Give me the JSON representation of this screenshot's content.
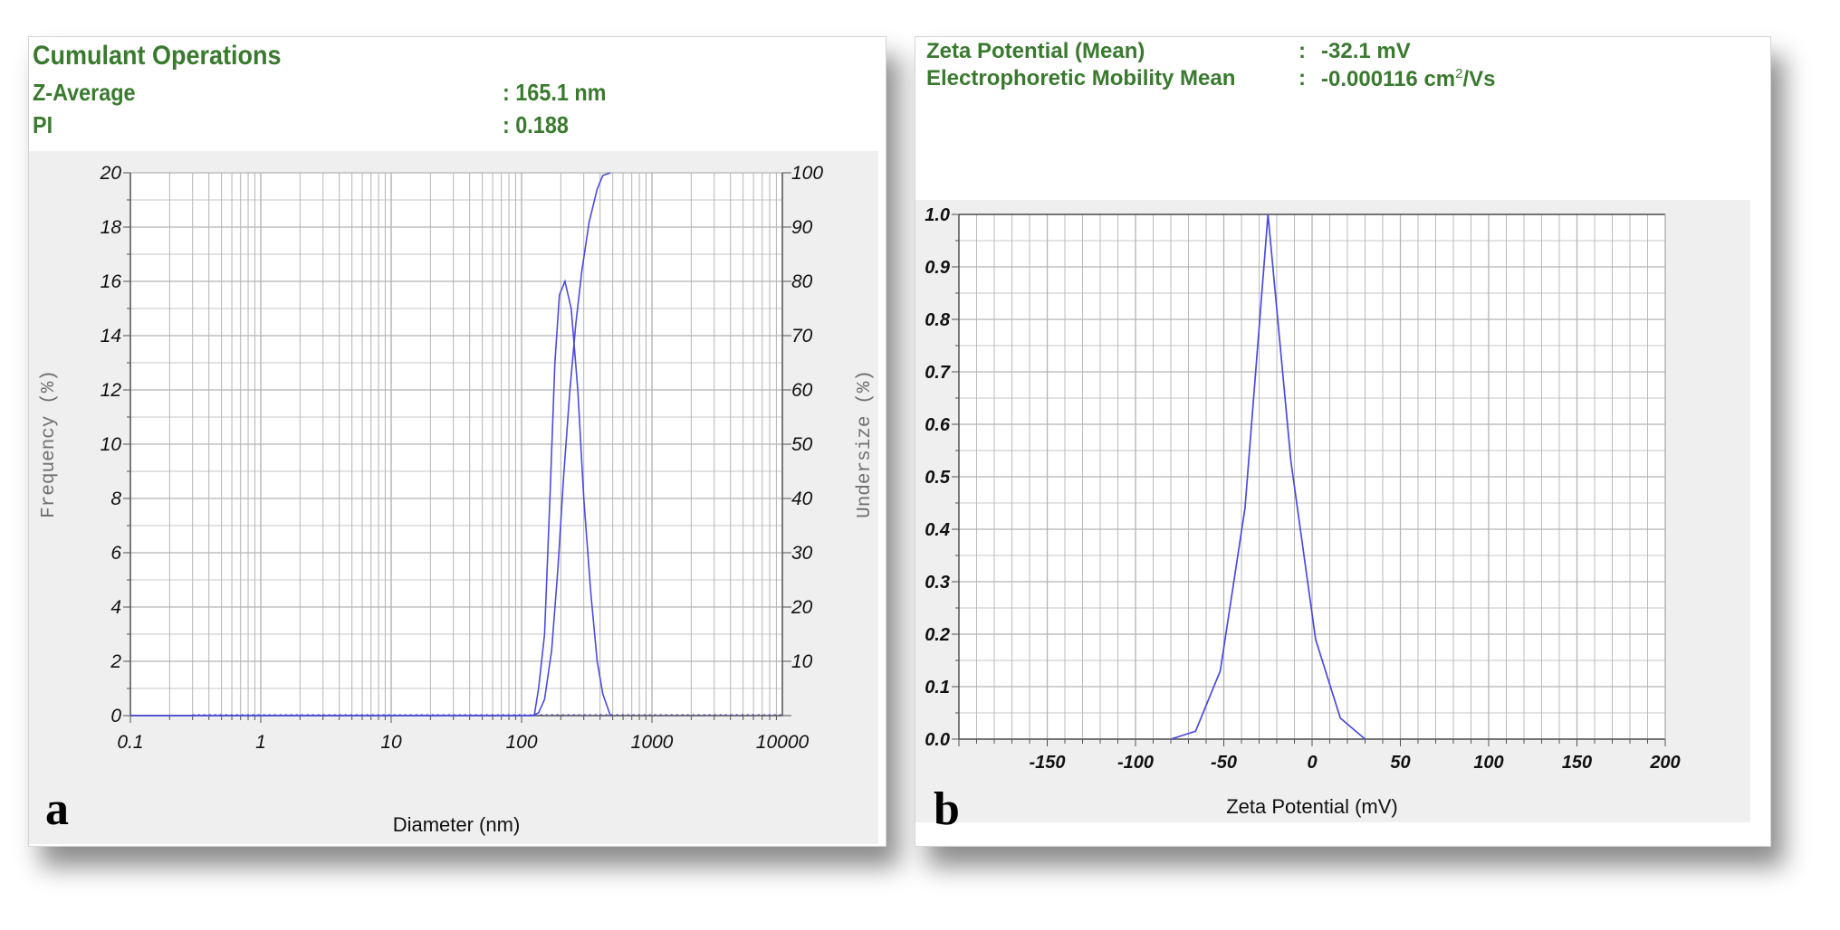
{
  "panel_a": {
    "letter": "a",
    "header": {
      "title": "Cumulant Operations",
      "rows": [
        {
          "label": "Z-Average",
          "value": ": 165.1 nm"
        },
        {
          "label": "PI",
          "value": ":  0.188"
        }
      ]
    }
  },
  "panel_b": {
    "letter": "b",
    "header": {
      "rows": [
        {
          "label": "Zeta Potential (Mean)",
          "sep": ":",
          "value": "-32.1  mV"
        },
        {
          "label": "Electrophoretic Mobility Mean",
          "sep": ":",
          "value": "-0.000116  cm",
          "sup": "2",
          "unit": "/Vs"
        }
      ]
    }
  },
  "colors": {
    "header_text": "#3a7a2f",
    "plot_background": "#efefef",
    "grid": "#b4b4b4",
    "series": "#4b4bdc",
    "axis": "#505050"
  },
  "chart_data": [
    {
      "id": "size-distribution",
      "type": "line",
      "xlabel": "Diameter (nm)",
      "ylabel": "Frequency (%)",
      "y2label": "Undersize (%)",
      "xscale": "log",
      "xlim": [
        0.1,
        10000
      ],
      "ylim": [
        0,
        20
      ],
      "y2lim": [
        0,
        100
      ],
      "x_ticks": [
        "0.1",
        "1",
        "10",
        "100",
        "1000",
        "10000"
      ],
      "y_ticks": [
        "0",
        "2",
        "4",
        "6",
        "8",
        "10",
        "12",
        "14",
        "16",
        "18",
        "20"
      ],
      "y2_ticks": [
        "10",
        "20",
        "30",
        "40",
        "50",
        "60",
        "70",
        "80",
        "90",
        "100"
      ],
      "grid": true,
      "series": [
        {
          "axis": "left",
          "points": [
            [
              0.1,
              0
            ],
            [
              0.3,
              0
            ],
            [
              125,
              0
            ],
            [
              135,
              1
            ],
            [
              150,
              3
            ],
            [
              165,
              8
            ],
            [
              180,
              13
            ],
            [
              195,
              15.5
            ],
            [
              215,
              16
            ],
            [
              240,
              15
            ],
            [
              270,
              12
            ],
            [
              300,
              8
            ],
            [
              340,
              4.5
            ],
            [
              380,
              2
            ],
            [
              420,
              0.8
            ],
            [
              480,
              0
            ]
          ]
        },
        {
          "axis": "right",
          "points": [
            [
              0.1,
              0
            ],
            [
              120,
              0
            ],
            [
              135,
              0.5
            ],
            [
              150,
              3
            ],
            [
              170,
              12
            ],
            [
              190,
              27
            ],
            [
              210,
              44
            ],
            [
              235,
              60
            ],
            [
              260,
              72
            ],
            [
              290,
              82
            ],
            [
              330,
              91
            ],
            [
              380,
              97
            ],
            [
              420,
              99.5
            ],
            [
              480,
              100
            ]
          ]
        }
      ]
    },
    {
      "id": "zeta-potential",
      "type": "line",
      "xlabel": "Zeta Potential (mV)",
      "ylabel": "",
      "xlim": [
        -200,
        200
      ],
      "ylim": [
        0,
        1
      ],
      "x_ticks": [
        "-150",
        "-100",
        "-50",
        "0",
        "50",
        "100",
        "150",
        "200"
      ],
      "y_ticks": [
        "0.0",
        "0.1",
        "0.2",
        "0.3",
        "0.4",
        "0.5",
        "0.6",
        "0.7",
        "0.8",
        "0.9",
        "1.0"
      ],
      "grid": true,
      "series": [
        {
          "points": [
            [
              -80,
              0
            ],
            [
              -66,
              0.015
            ],
            [
              -52,
              0.13
            ],
            [
              -38,
              0.44
            ],
            [
              -25,
              1.0
            ],
            [
              -12,
              0.53
            ],
            [
              2,
              0.19
            ],
            [
              16,
              0.04
            ],
            [
              30,
              0
            ]
          ]
        }
      ]
    }
  ]
}
